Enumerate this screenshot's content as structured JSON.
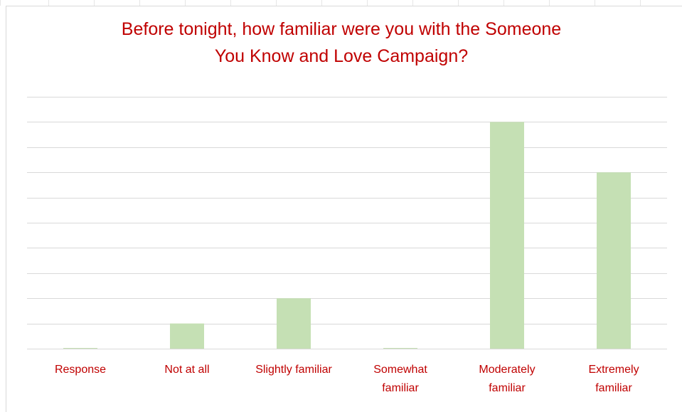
{
  "chart_data": {
    "type": "bar",
    "title": "Before tonight, how familiar were you with the Someone\nYou Know and Love Campaign?",
    "categories": [
      "Response",
      "Not at all",
      "Slightly familiar",
      "Somewhat\nfamiliar",
      "Moderately\nfamiliar",
      "Extremely\nfamiliar"
    ],
    "values": [
      0,
      1,
      2,
      0,
      9,
      7
    ],
    "ylim": [
      0,
      10
    ],
    "grid": true,
    "legend": false,
    "xlabel": "",
    "ylabel": "",
    "colors": {
      "bar": "#c5e0b4",
      "gridline": "#d9d9d9",
      "axis": "#d9d9d9",
      "text": "#c00000"
    }
  }
}
